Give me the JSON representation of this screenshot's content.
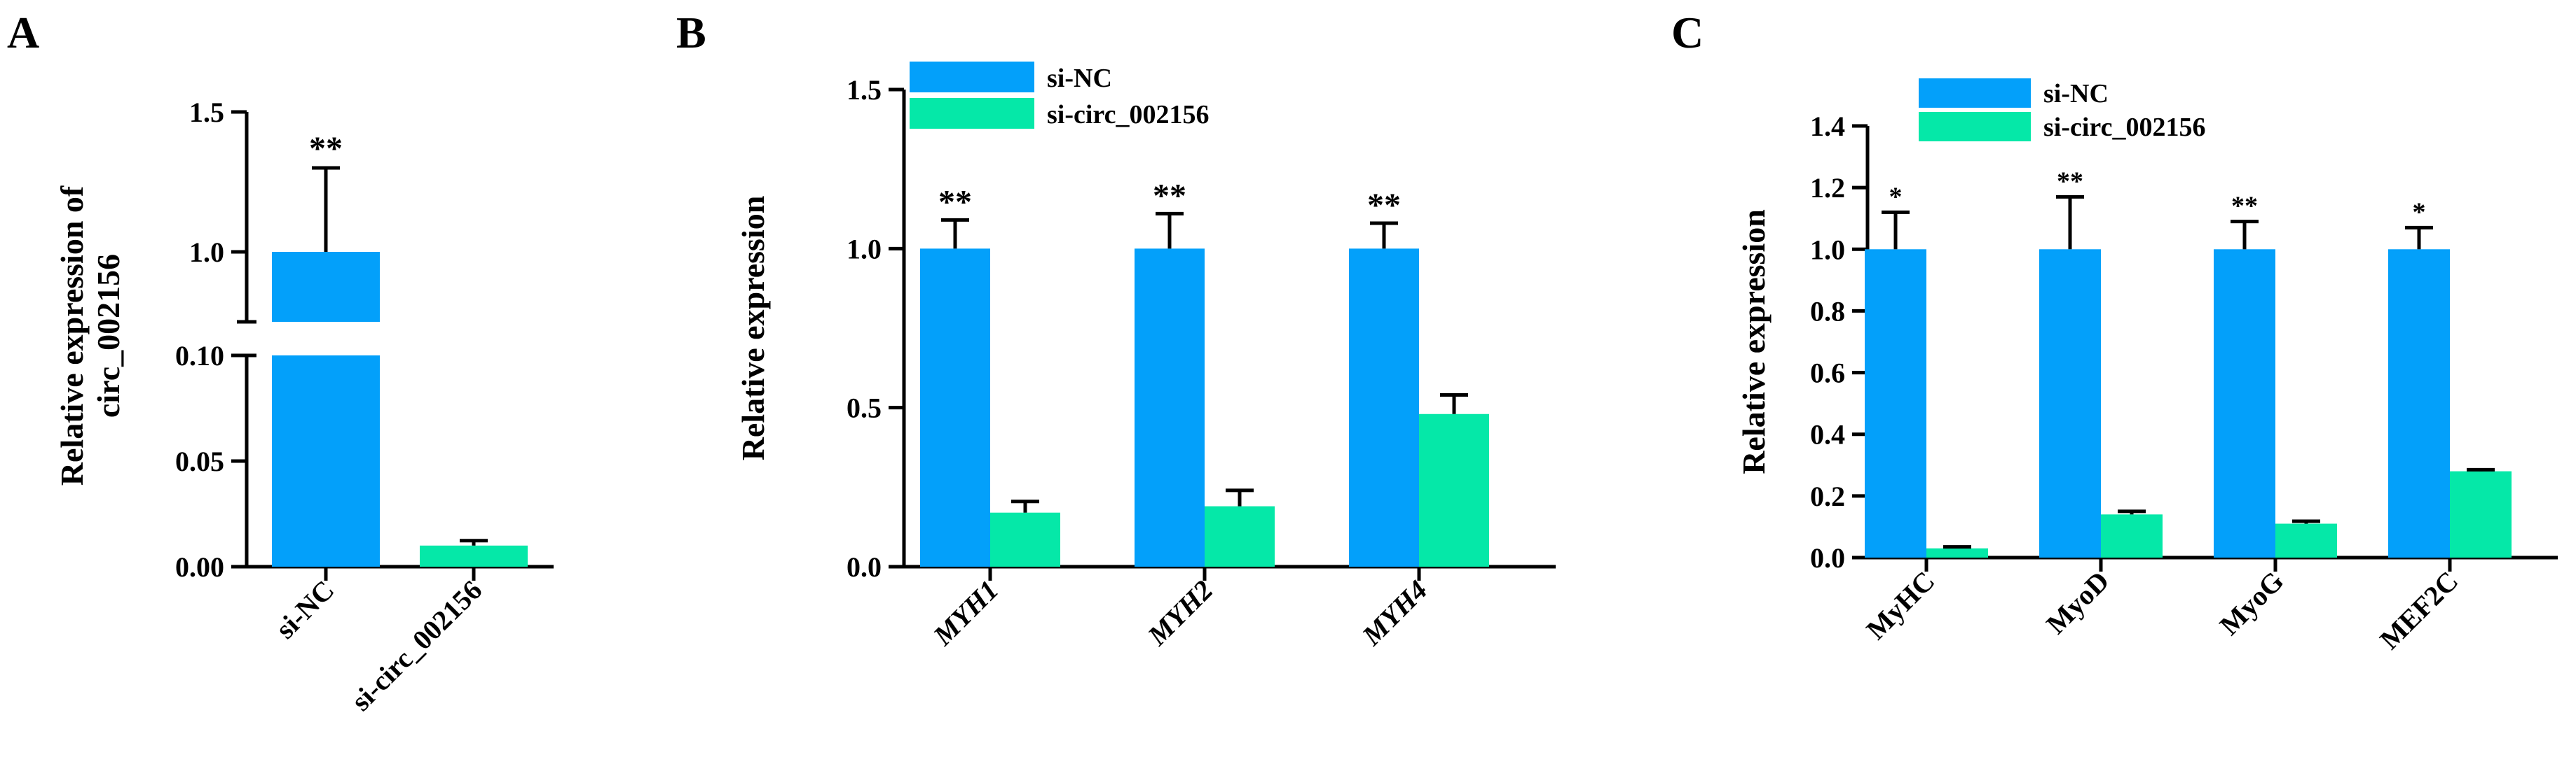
{
  "panels": {
    "A": {
      "letter": "A"
    },
    "B": {
      "letter": "B"
    },
    "C": {
      "letter": "C"
    }
  },
  "colors": {
    "si_nc": "#03A0FA",
    "si_circ": "#05E8A8",
    "axis": "#000000"
  },
  "chart_data": [
    {
      "id": "A",
      "type": "bar",
      "ylabel_lines": [
        "Relative expression of",
        "circ_002156"
      ],
      "ylim_lower": [
        0,
        0.1
      ],
      "ylim_upper": [
        0.75,
        1.5
      ],
      "yticks_lower": [
        "0.00",
        "0.05",
        "0.10"
      ],
      "yticks_upper": [
        "1.0",
        "1.5"
      ],
      "categories": [
        "si-NC",
        "si-circ_002156"
      ],
      "values": [
        1.0,
        0.01
      ],
      "errors": [
        0.3,
        0.001
      ],
      "significance": [
        "**",
        ""
      ],
      "axis_break": true
    },
    {
      "id": "B",
      "type": "bar",
      "ylabel": "Relative expression",
      "ylim": [
        0,
        1.5
      ],
      "yticks": [
        "0.0",
        "0.5",
        "1.0",
        "1.5"
      ],
      "categories": [
        "MYH1",
        "MYH2",
        "MYH4"
      ],
      "categories_italic": true,
      "legend": [
        "si-NC",
        "si-circ_002156"
      ],
      "series": [
        {
          "name": "si-NC",
          "values": [
            1.0,
            1.0,
            1.0
          ],
          "errors": [
            0.09,
            0.11,
            0.08
          ]
        },
        {
          "name": "si-circ_002156",
          "values": [
            0.17,
            0.19,
            0.48
          ],
          "errors": [
            0.035,
            0.05,
            0.06
          ]
        }
      ],
      "significance": [
        "**",
        "**",
        "**"
      ]
    },
    {
      "id": "C",
      "type": "bar",
      "ylabel": "Relative expression",
      "ylim": [
        0,
        1.4
      ],
      "yticks": [
        "0.0",
        "0.2",
        "0.4",
        "0.6",
        "0.8",
        "1.0",
        "1.2",
        "1.4"
      ],
      "categories": [
        "MyHC",
        "MyoD",
        "MyoG",
        "MEF2C"
      ],
      "legend": [
        "si-NC",
        "si-circ_002156"
      ],
      "series": [
        {
          "name": "si-NC",
          "values": [
            1.0,
            1.0,
            1.0,
            1.0
          ],
          "errors": [
            0.12,
            0.17,
            0.09,
            0.07
          ]
        },
        {
          "name": "si-circ_002156",
          "values": [
            0.03,
            0.14,
            0.11,
            0.28
          ],
          "errors": [
            0.005,
            0.01,
            0.008,
            0.005
          ]
        }
      ],
      "significance": [
        "*",
        "**",
        "**",
        "*"
      ]
    }
  ]
}
